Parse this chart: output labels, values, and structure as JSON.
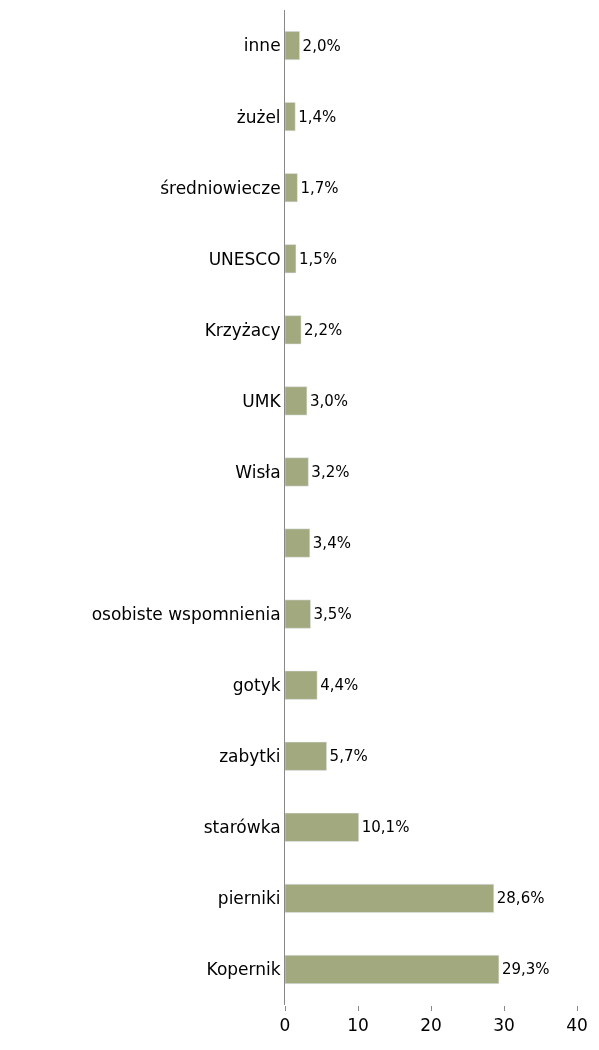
{
  "chart_data": {
    "type": "bar",
    "orientation": "horizontal",
    "categories": [
      "inne",
      "żużel",
      "średniowiecze",
      "UNESCO",
      "Krzyżacy",
      "UMK",
      "Wisła",
      null,
      "osobiste wspomnienia",
      "gotyk",
      "zabytki",
      "starówka",
      "pierniki",
      "Kopernik"
    ],
    "values": [
      2.0,
      1.4,
      1.7,
      1.5,
      2.2,
      3.0,
      3.2,
      3.4,
      3.5,
      4.4,
      5.7,
      10.1,
      28.6,
      29.3
    ],
    "value_labels": [
      "2,0%",
      "1,4%",
      "1,7%",
      "1,5%",
      "2,2%",
      "3,0%",
      "3,2%",
      "3,4%",
      "3,5%",
      "4,4%",
      "5,7%",
      "10,1%",
      "28,6%",
      "29,3%"
    ],
    "color": "#a3a97f",
    "xlim": [
      0,
      40
    ],
    "xticks": [
      0,
      10,
      20,
      30,
      40
    ]
  }
}
